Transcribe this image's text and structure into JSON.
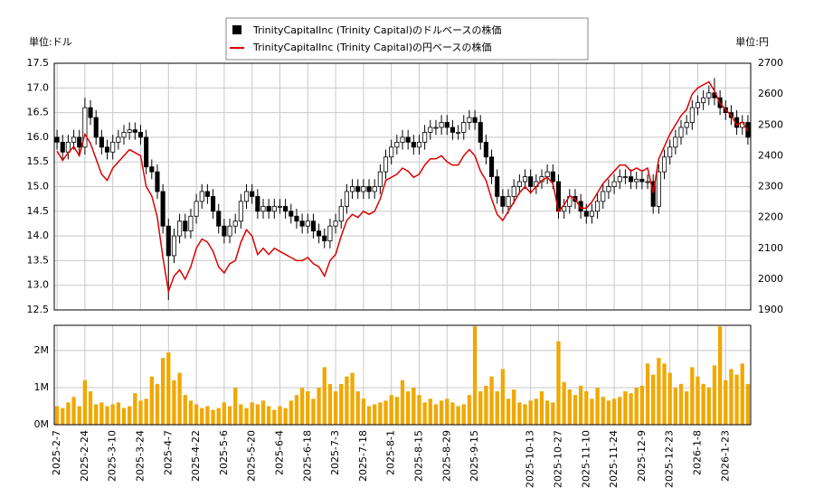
{
  "chart_data": {
    "type": "candlestick",
    "y_unit": "単位:ドル",
    "y2_unit": "単位:円",
    "categories": [
      "2025-2-7",
      null,
      null,
      null,
      null,
      "2025-2-24",
      null,
      null,
      null,
      null,
      "2025-3-10",
      null,
      null,
      null,
      null,
      "2025-3-24",
      null,
      null,
      null,
      null,
      "2025-4-7",
      null,
      null,
      null,
      null,
      "2025-4-22",
      null,
      null,
      null,
      null,
      "2025-5-6",
      null,
      null,
      null,
      null,
      "2025-5-20",
      null,
      null,
      null,
      null,
      "2025-6-4",
      null,
      null,
      null,
      null,
      "2025-6-18",
      null,
      null,
      null,
      null,
      "2025-7-3",
      null,
      null,
      null,
      null,
      "2025-7-18",
      null,
      null,
      null,
      null,
      "2025-8-1",
      null,
      null,
      null,
      null,
      "2025-8-15",
      null,
      null,
      null,
      null,
      "2025-8-29",
      null,
      null,
      null,
      null,
      "2025-9-15",
      null,
      null,
      null,
      null,
      null,
      null,
      null,
      null,
      null,
      "2025-10-13",
      null,
      null,
      null,
      null,
      "2025-10-27",
      null,
      null,
      null,
      null,
      "2025-11-10",
      null,
      null,
      null,
      null,
      "2025-11-24",
      null,
      null,
      null,
      null,
      "2025-12-9",
      null,
      null,
      null,
      null,
      "2025-12-23",
      null,
      null,
      null,
      null,
      "2026-1-8",
      null,
      null,
      null,
      null,
      "2026-1-23",
      null,
      null,
      null,
      null
    ],
    "ylim": [
      12.5,
      17.5
    ],
    "yticks": [
      12.5,
      {
        "value": 13,
        "label": "13.0"
      },
      13.5,
      {
        "value": 14,
        "label": "14.0"
      },
      14.5,
      {
        "value": 15,
        "label": "15.0"
      },
      15.5,
      {
        "value": 16,
        "label": "16.0"
      },
      16.5,
      {
        "value": 17,
        "label": "17.0"
      },
      17.5
    ],
    "y2lim": [
      1900,
      2700
    ],
    "y2ticks": [
      1900,
      2000,
      2100,
      2200,
      2300,
      2400,
      2500,
      2600,
      2700
    ],
    "grid": true,
    "series": [
      {
        "name": "TrinityCapitalInc (Trinity Capital)のドルベースの株価",
        "color": "#000000",
        "open": [
          16.0,
          15.9,
          15.7,
          15.9,
          16.0,
          15.8,
          16.6,
          16.4,
          16.0,
          15.8,
          15.7,
          15.9,
          16.0,
          16.1,
          16.15,
          16.1,
          16.0,
          15.4,
          15.3,
          14.9,
          14.2,
          13.6,
          14.0,
          14.3,
          14.1,
          14.4,
          14.7,
          14.9,
          14.8,
          14.5,
          14.2,
          14.0,
          14.2,
          14.3,
          14.7,
          14.9,
          14.8,
          14.5,
          14.6,
          14.5,
          14.6,
          14.6,
          14.5,
          14.4,
          14.3,
          14.2,
          14.3,
          14.1,
          14.0,
          13.9,
          14.2,
          14.3,
          14.6,
          14.9,
          15.0,
          14.9,
          15.0,
          14.9,
          15.0,
          15.3,
          15.6,
          15.8,
          15.9,
          16.0,
          15.9,
          15.8,
          15.9,
          16.1,
          16.2,
          16.2,
          16.3,
          16.2,
          16.1,
          16.1,
          16.3,
          16.4,
          16.3,
          15.9,
          15.6,
          15.2,
          14.8,
          14.6,
          14.8,
          15.0,
          15.1,
          15.2,
          15.0,
          15.1,
          15.2,
          15.3,
          15.1,
          14.5,
          14.6,
          14.8,
          14.7,
          14.5,
          14.4,
          14.5,
          14.7,
          14.9,
          15.0,
          15.1,
          15.2,
          15.2,
          15.1,
          15.15,
          15.1,
          15.1,
          14.6,
          15.3,
          15.6,
          15.8,
          16.0,
          16.2,
          16.3,
          16.6,
          16.7,
          16.8,
          16.9,
          16.8,
          16.6,
          16.5,
          16.4,
          16.2,
          16.3
        ],
        "high": [
          16.15,
          16.05,
          16.05,
          16.15,
          16.15,
          16.8,
          16.75,
          16.55,
          16.15,
          15.95,
          16.05,
          16.15,
          16.25,
          16.3,
          16.3,
          16.25,
          16.15,
          15.55,
          15.45,
          15.05,
          14.35,
          14.15,
          14.45,
          14.45,
          14.55,
          14.85,
          15.05,
          15.05,
          14.95,
          14.65,
          14.35,
          14.35,
          14.45,
          14.85,
          15.05,
          15.05,
          14.95,
          14.75,
          14.75,
          14.75,
          14.75,
          14.75,
          14.65,
          14.55,
          14.45,
          14.45,
          14.45,
          14.25,
          14.15,
          14.35,
          14.45,
          14.75,
          15.05,
          15.15,
          15.15,
          15.15,
          15.15,
          15.15,
          15.45,
          15.75,
          15.95,
          16.05,
          16.15,
          16.15,
          16.05,
          16.05,
          16.25,
          16.35,
          16.35,
          16.45,
          16.45,
          16.35,
          16.25,
          16.45,
          16.55,
          16.55,
          16.45,
          16.05,
          15.75,
          15.35,
          14.95,
          14.95,
          15.15,
          15.25,
          15.35,
          15.35,
          15.25,
          15.35,
          15.45,
          15.45,
          15.25,
          14.75,
          14.95,
          14.95,
          14.85,
          14.65,
          14.65,
          14.85,
          15.05,
          15.15,
          15.25,
          15.35,
          15.35,
          15.35,
          15.3,
          15.3,
          15.25,
          15.25,
          15.45,
          15.75,
          15.95,
          16.15,
          16.35,
          16.45,
          16.75,
          16.85,
          16.95,
          17.05,
          17.2,
          16.95,
          16.75,
          16.65,
          16.55,
          16.45,
          16.45
        ],
        "low": [
          15.75,
          15.55,
          15.55,
          15.75,
          15.65,
          15.65,
          16.25,
          15.85,
          15.65,
          15.55,
          15.55,
          15.75,
          15.85,
          15.95,
          15.95,
          15.85,
          15.25,
          15.15,
          14.75,
          14.05,
          12.7,
          13.45,
          13.85,
          13.95,
          13.95,
          14.25,
          14.55,
          14.65,
          14.35,
          14.05,
          13.85,
          13.85,
          14.05,
          14.15,
          14.55,
          14.65,
          14.35,
          14.35,
          14.35,
          14.35,
          14.45,
          14.35,
          14.25,
          14.15,
          14.05,
          14.05,
          13.95,
          13.85,
          13.75,
          13.75,
          14.05,
          14.15,
          14.45,
          14.75,
          14.75,
          14.75,
          14.75,
          14.75,
          14.85,
          15.15,
          15.45,
          15.65,
          15.75,
          15.75,
          15.65,
          15.65,
          15.75,
          15.95,
          16.05,
          16.05,
          16.05,
          15.95,
          15.95,
          15.95,
          16.15,
          16.15,
          15.75,
          15.45,
          15.05,
          14.65,
          14.45,
          14.45,
          14.65,
          14.85,
          14.95,
          14.85,
          14.85,
          14.95,
          15.05,
          14.95,
          14.35,
          14.35,
          14.45,
          14.55,
          14.35,
          14.25,
          14.25,
          14.35,
          14.55,
          14.75,
          14.85,
          14.95,
          15.05,
          14.95,
          14.95,
          14.95,
          14.95,
          14.45,
          14.45,
          15.15,
          15.45,
          15.65,
          15.85,
          16.05,
          16.15,
          16.45,
          16.55,
          16.65,
          16.65,
          16.45,
          16.35,
          16.25,
          16.05,
          16.05,
          15.85
        ],
        "close": [
          15.9,
          15.7,
          15.9,
          16.0,
          15.8,
          16.6,
          16.4,
          16.0,
          15.8,
          15.7,
          15.9,
          16.0,
          16.1,
          16.15,
          16.1,
          16.0,
          15.4,
          15.3,
          14.9,
          14.2,
          13.6,
          14.0,
          14.3,
          14.1,
          14.4,
          14.7,
          14.9,
          14.8,
          14.5,
          14.2,
          14.0,
          14.2,
          14.3,
          14.7,
          14.9,
          14.8,
          14.5,
          14.6,
          14.5,
          14.6,
          14.6,
          14.5,
          14.4,
          14.3,
          14.2,
          14.3,
          14.1,
          14.0,
          13.9,
          14.2,
          14.3,
          14.6,
          14.9,
          15.0,
          14.9,
          15.0,
          14.9,
          15.0,
          15.3,
          15.6,
          15.8,
          15.9,
          16.0,
          15.9,
          15.8,
          15.9,
          16.1,
          16.2,
          16.2,
          16.3,
          16.2,
          16.1,
          16.1,
          16.3,
          16.4,
          16.3,
          15.9,
          15.6,
          15.2,
          14.8,
          14.6,
          14.8,
          15.0,
          15.1,
          15.2,
          15.0,
          15.1,
          15.2,
          15.3,
          15.1,
          14.5,
          14.6,
          14.8,
          14.7,
          14.5,
          14.4,
          14.5,
          14.7,
          14.9,
          15.0,
          15.1,
          15.2,
          15.2,
          15.1,
          15.15,
          15.1,
          15.1,
          14.6,
          15.3,
          15.6,
          15.8,
          16.0,
          16.2,
          16.3,
          16.6,
          16.7,
          16.8,
          16.9,
          16.8,
          16.6,
          16.5,
          16.4,
          16.2,
          16.3,
          16.0
        ]
      },
      {
        "name": "TrinityCapitalInc (Trinity Capital)の円ベースの株価",
        "color": "#dd0000",
        "axis": "y2",
        "values": [
          2415,
          2385,
          2410,
          2430,
          2400,
          2470,
          2440,
          2390,
          2340,
          2320,
          2360,
          2380,
          2400,
          2420,
          2410,
          2400,
          2300,
          2270,
          2200,
          2070,
          1960,
          2010,
          2030,
          2000,
          2040,
          2100,
          2130,
          2120,
          2090,
          2040,
          2020,
          2050,
          2060,
          2120,
          2160,
          2140,
          2080,
          2100,
          2080,
          2100,
          2090,
          2080,
          2070,
          2060,
          2060,
          2070,
          2050,
          2040,
          2010,
          2060,
          2080,
          2140,
          2190,
          2210,
          2200,
          2220,
          2210,
          2220,
          2260,
          2320,
          2330,
          2340,
          2360,
          2350,
          2330,
          2340,
          2370,
          2390,
          2390,
          2400,
          2380,
          2370,
          2370,
          2400,
          2420,
          2400,
          2350,
          2320,
          2260,
          2210,
          2190,
          2220,
          2250,
          2280,
          2300,
          2280,
          2300,
          2320,
          2330,
          2310,
          2220,
          2240,
          2270,
          2260,
          2230,
          2230,
          2250,
          2280,
          2310,
          2330,
          2350,
          2370,
          2370,
          2350,
          2360,
          2350,
          2360,
          2280,
          2390,
          2430,
          2470,
          2500,
          2530,
          2550,
          2600,
          2620,
          2630,
          2640,
          2610,
          2570,
          2550,
          2530,
          2500,
          2510,
          2480
        ]
      }
    ],
    "volume": {
      "color": "#f0a800",
      "ylim": [
        0,
        2680000
      ],
      "yticks": [
        {
          "value": 0,
          "label": "0M"
        },
        {
          "value": 1000000,
          "label": "1M"
        },
        {
          "value": 2000000,
          "label": "2M"
        }
      ],
      "values": [
        500000,
        450000,
        600000,
        750000,
        500000,
        1200000,
        900000,
        550000,
        600000,
        500000,
        550000,
        600000,
        450000,
        500000,
        850000,
        650000,
        700000,
        1300000,
        1100000,
        1800000,
        1950000,
        1200000,
        1400000,
        800000,
        650000,
        550000,
        450000,
        500000,
        400000,
        450000,
        600000,
        500000,
        1000000,
        550000,
        450000,
        600000,
        550000,
        650000,
        500000,
        400000,
        500000,
        450000,
        650000,
        800000,
        1000000,
        900000,
        700000,
        1000000,
        1550000,
        1100000,
        900000,
        1100000,
        1300000,
        1400000,
        900000,
        700000,
        500000,
        550000,
        600000,
        650000,
        800000,
        750000,
        1200000,
        900000,
        1000000,
        800000,
        600000,
        700000,
        550000,
        650000,
        700000,
        600000,
        500000,
        550000,
        800000,
        2650000,
        900000,
        1050000,
        1300000,
        900000,
        1500000,
        700000,
        950000,
        600000,
        550000,
        650000,
        700000,
        900000,
        650000,
        600000,
        2250000,
        1150000,
        950000,
        800000,
        1050000,
        900000,
        700000,
        1000000,
        750000,
        650000,
        700000,
        750000,
        900000,
        850000,
        1000000,
        1050000,
        1650000,
        1350000,
        1800000,
        1650000,
        1400000,
        1000000,
        1100000,
        900000,
        1550000,
        1300000,
        1100000,
        1000000,
        1600000,
        2650000,
        1200000,
        1500000,
        1350000,
        1650000,
        1100000
      ]
    }
  }
}
